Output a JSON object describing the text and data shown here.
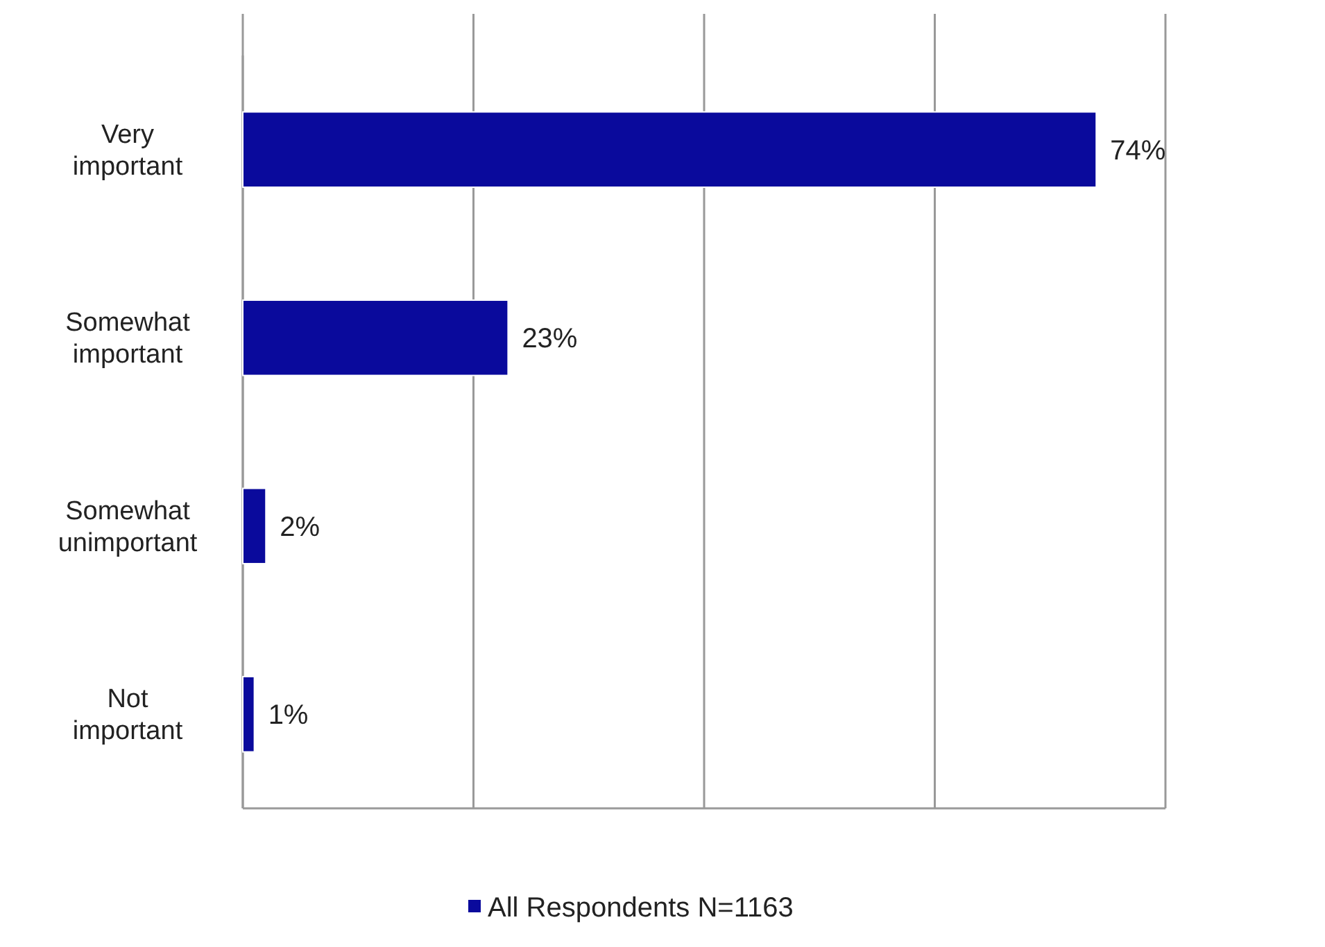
{
  "chart_data": {
    "type": "bar",
    "orientation": "horizontal",
    "categories": [
      "Very important",
      "Somewhat important",
      "Somewhat unimportant",
      "Not important"
    ],
    "series": [
      {
        "name": "All Respondents N=1163",
        "color": "#0a0a9c",
        "values": [
          74,
          23,
          2,
          1
        ],
        "value_labels": [
          "74%",
          "23%",
          "2%",
          "1%"
        ]
      }
    ],
    "xlim": [
      0,
      80
    ],
    "xticks": [
      {
        "value": 0,
        "label": null
      },
      {
        "value": 20,
        "label": null
      },
      {
        "value": 40,
        "label": null
      },
      {
        "value": 60,
        "label": null
      },
      {
        "value": 80,
        "label": null
      }
    ],
    "tick_labels": "y",
    "grid": "x",
    "legend": "bottom"
  }
}
